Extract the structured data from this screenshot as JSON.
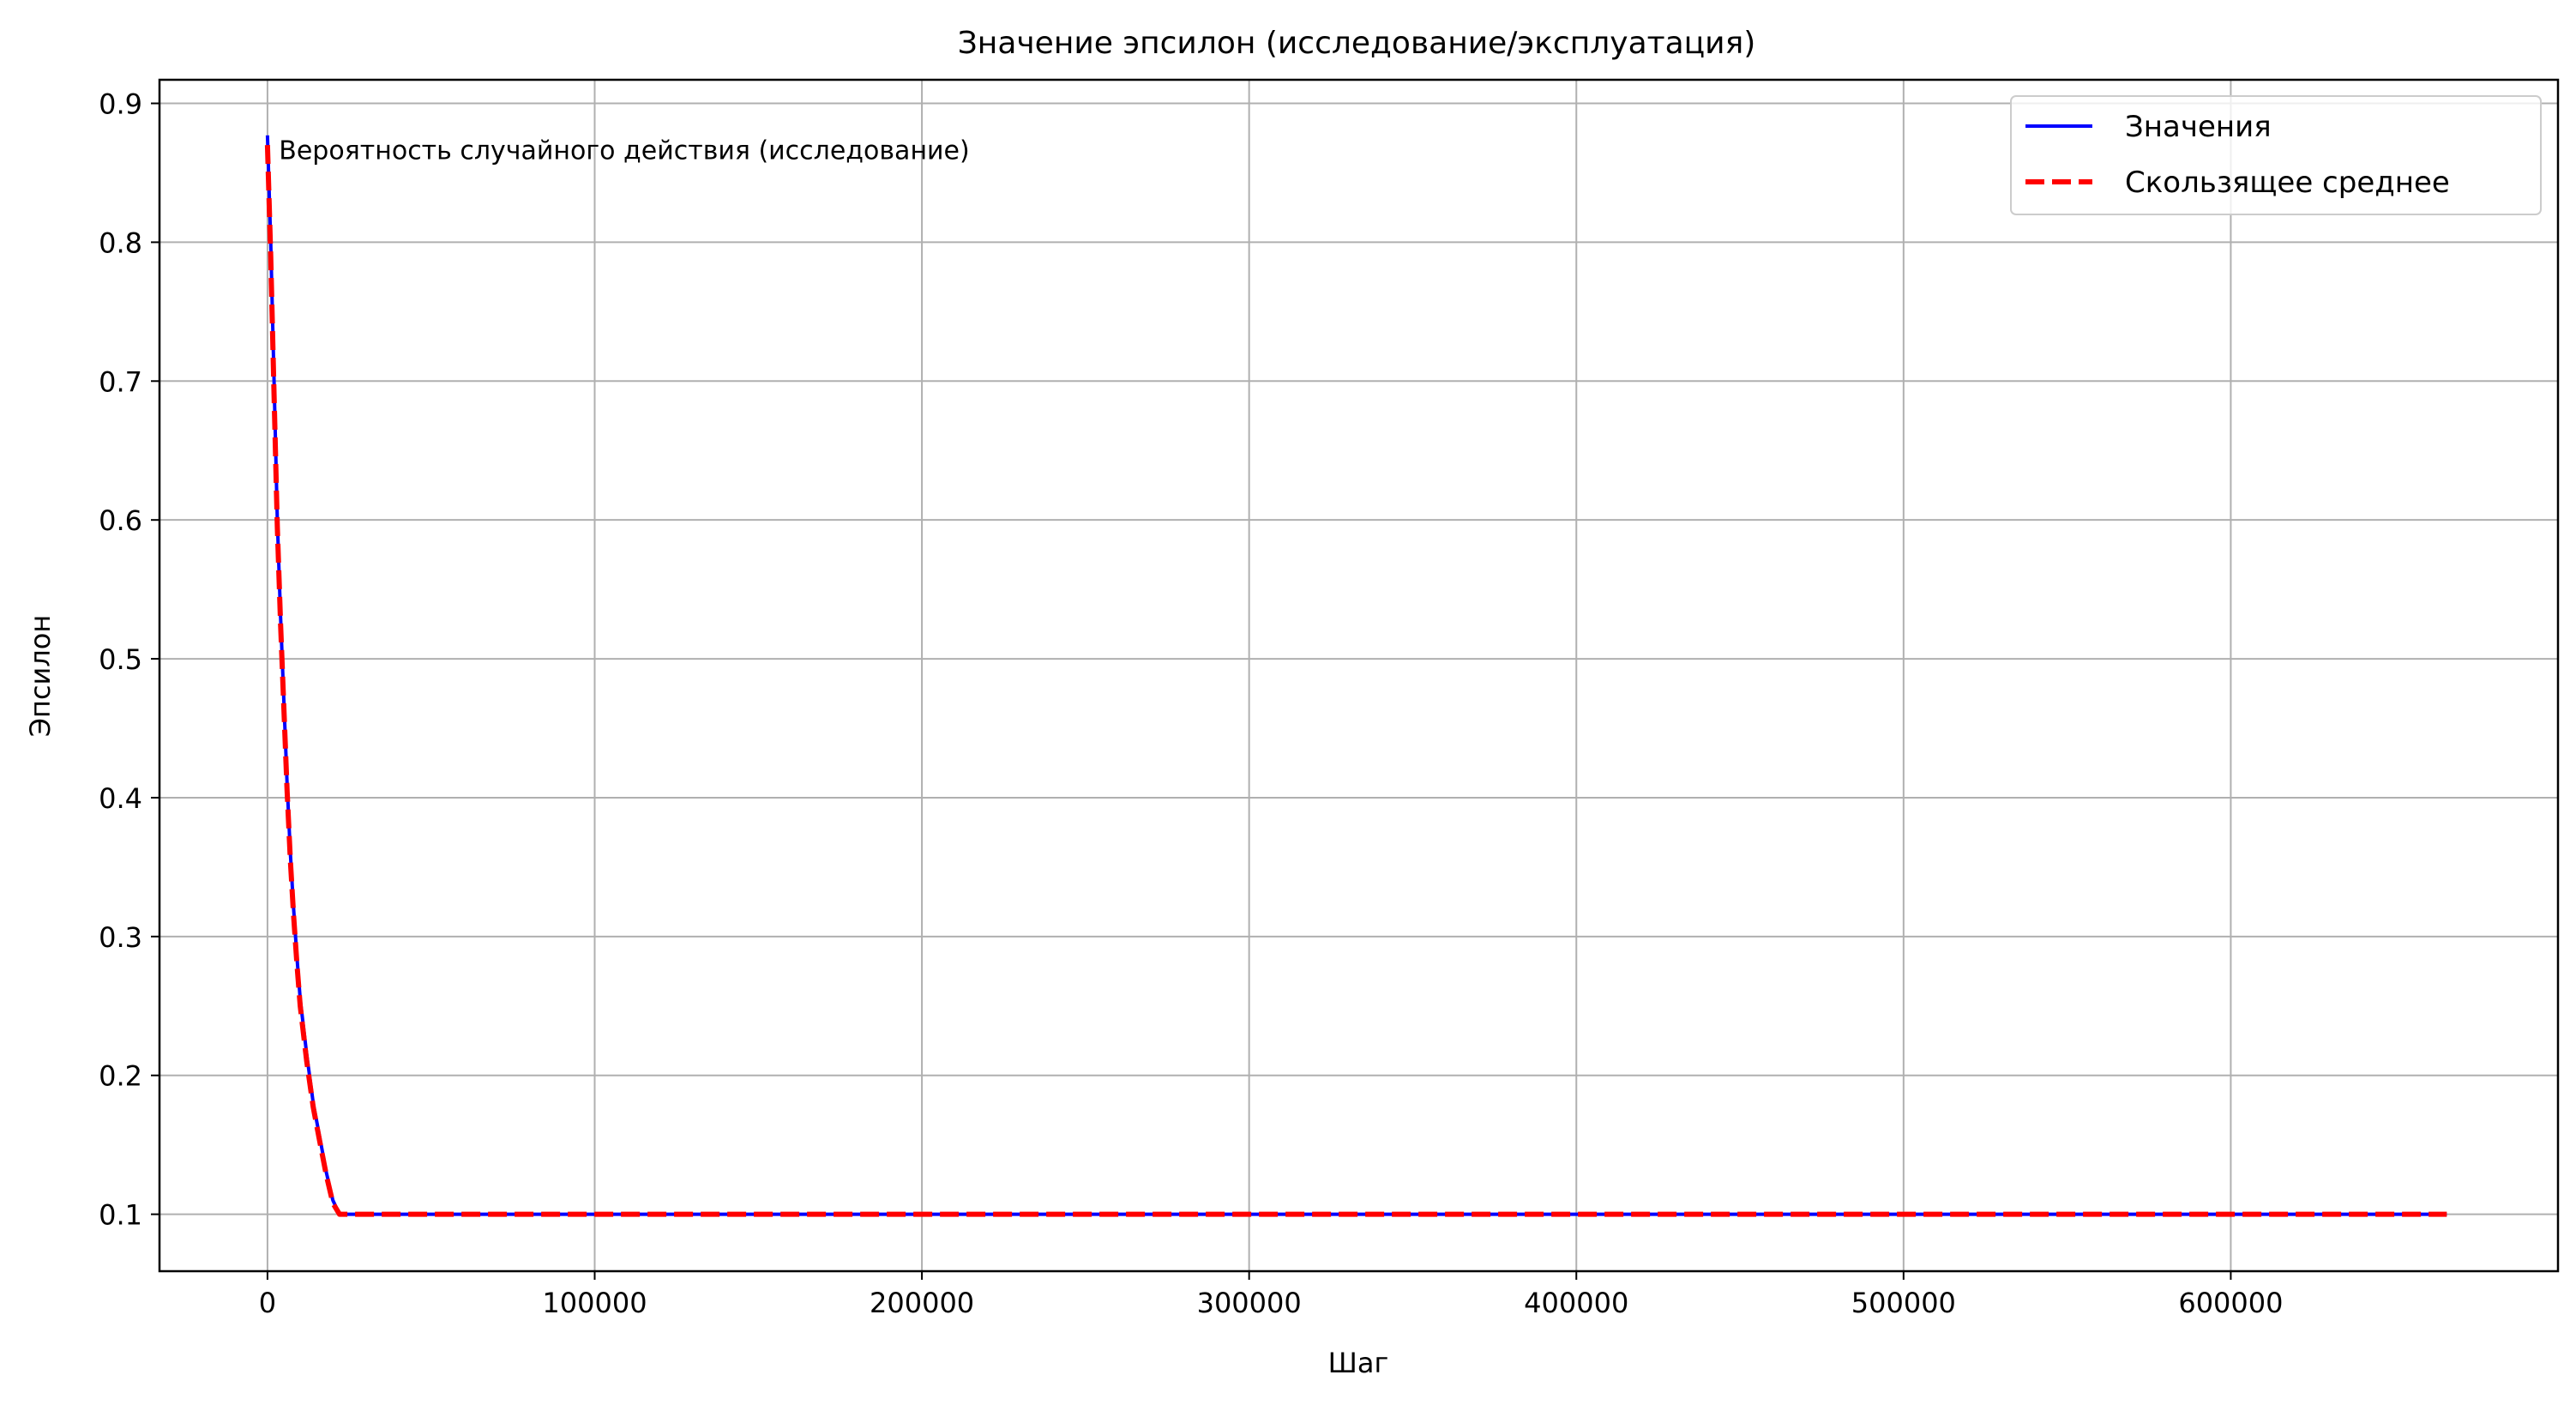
{
  "chart_data": {
    "type": "line",
    "title": "Значение эпсилон (исследование/эксплуатация)",
    "xlabel": "Шаг",
    "ylabel": "Эпсилон",
    "xlim": [
      -33000,
      700000
    ],
    "ylim": [
      0.059,
      0.917
    ],
    "xticks": [
      0,
      100000,
      200000,
      300000,
      400000,
      500000,
      600000
    ],
    "yticks": [
      0.1,
      0.2,
      0.3,
      0.4,
      0.5,
      0.6,
      0.7,
      0.8,
      0.9
    ],
    "grid": true,
    "legend_position": "top-right",
    "annotation": {
      "text": "Вероятность случайного действия (исследование)",
      "x": 3500,
      "y": 0.86
    },
    "series": [
      {
        "name": "Значения",
        "color": "#0000ff",
        "style": "solid",
        "x": [
          0,
          1000,
          2000,
          3000,
          4000,
          5000,
          6000,
          7000,
          8000,
          9000,
          10000,
          11000,
          12000,
          14000,
          16000,
          18000,
          20000,
          22000,
          25000,
          50000,
          100000,
          200000,
          300000,
          400000,
          500000,
          600000,
          666000
        ],
        "y": [
          0.877,
          0.8,
          0.7,
          0.6,
          0.53,
          0.47,
          0.41,
          0.36,
          0.32,
          0.285,
          0.255,
          0.235,
          0.215,
          0.18,
          0.155,
          0.13,
          0.11,
          0.1,
          0.1,
          0.1,
          0.1,
          0.1,
          0.1,
          0.1,
          0.1,
          0.1,
          0.1
        ]
      },
      {
        "name": "Скользящее среднее",
        "color": "#ff0000",
        "style": "dashed",
        "x": [
          0,
          1000,
          2000,
          3000,
          4000,
          5000,
          6000,
          7000,
          8000,
          9000,
          10000,
          11000,
          12000,
          14000,
          16000,
          18000,
          20000,
          22000,
          25000,
          50000,
          100000,
          200000,
          300000,
          400000,
          500000,
          600000,
          666000
        ],
        "y": [
          0.87,
          0.79,
          0.69,
          0.595,
          0.525,
          0.465,
          0.405,
          0.355,
          0.315,
          0.28,
          0.25,
          0.23,
          0.21,
          0.177,
          0.152,
          0.128,
          0.108,
          0.1,
          0.1,
          0.1,
          0.1,
          0.1,
          0.1,
          0.1,
          0.1,
          0.1,
          0.1
        ]
      }
    ]
  }
}
